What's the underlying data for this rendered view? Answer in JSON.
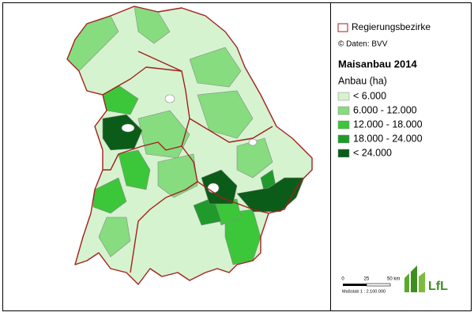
{
  "legend": {
    "boundary_label": "Regierungsbezirke",
    "source": "© Daten: BVV",
    "title": "Maisanbau 2014",
    "subtitle": "Anbau (ha)",
    "classes": [
      {
        "label": "< 6.000",
        "color": "#d5f3cf"
      },
      {
        "label": "6.000 - 12.000",
        "color": "#86dc7f"
      },
      {
        "label": "12.000 - 18.000",
        "color": "#3cc63a"
      },
      {
        "label": "18.000 - 24.000",
        "color": "#1f9a2b"
      },
      {
        "label": "< 24.000",
        "color": "#0b5c18"
      }
    ]
  },
  "scale_bar": {
    "ticks": [
      "0",
      "25",
      "50 km"
    ],
    "caption": "Maßstab 1 : 2.100.000"
  },
  "logo": "LfL"
}
